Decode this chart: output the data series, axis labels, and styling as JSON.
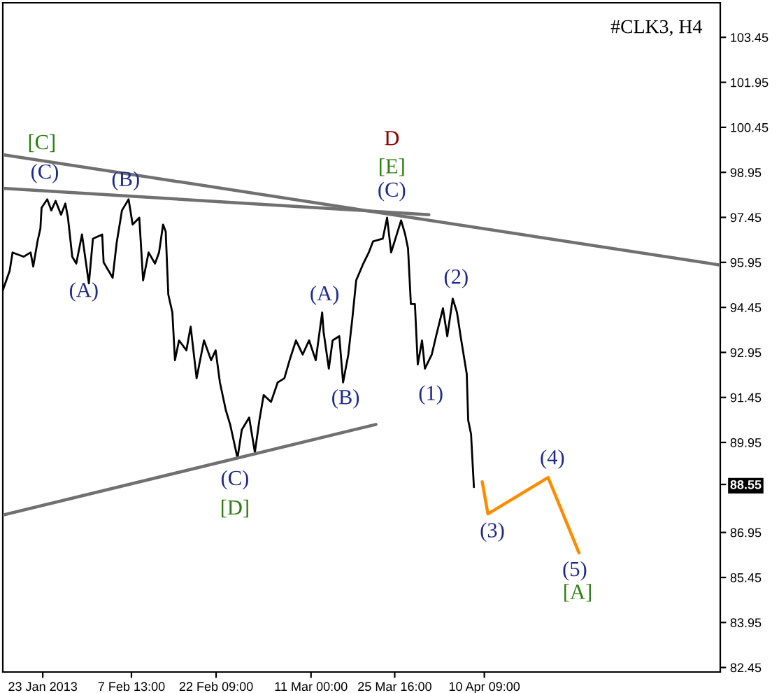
{
  "chart_data": {
    "type": "line",
    "title": "#CLK3, H4",
    "series": [
      {
        "color": "#000000",
        "x": [
          "2013-01-16T00:00",
          "2013-01-17T05:00",
          "2013-01-17T17:00",
          "2013-01-19T16:00",
          "2013-01-20T21:00",
          "2013-01-21T08:00",
          "2013-01-22T02:00",
          "2013-01-22T14:00",
          "2013-01-22T19:00",
          "2013-01-23T19:00",
          "2013-01-24T12:00",
          "2013-01-25T06:00",
          "2013-01-26T05:00",
          "2013-01-26T23:00",
          "2013-01-27T10:00",
          "2013-01-28T04:00",
          "2013-01-28T21:00",
          "2013-01-29T21:00",
          "2013-01-31T02:00",
          "2013-01-31T19:00",
          "2013-02-02T10:00",
          "2013-02-02T16:00",
          "2013-02-04T06:00",
          "2013-02-04T23:00",
          "2013-02-05T21:00",
          "2013-02-07T01:00",
          "2013-02-07T18:00",
          "2013-02-08T22:00",
          "2013-02-09T14:00",
          "2013-02-10T13:00",
          "2013-02-11T16:00",
          "2013-02-12T09:00",
          "2013-02-13T02:00",
          "2013-02-13T13:00",
          "2013-02-14T00:00",
          "2013-02-14T17:00",
          "2013-02-15T04:00",
          "2013-02-15T21:00",
          "2013-02-17T04:00",
          "2013-02-17T22:00",
          "2013-02-18T23:00",
          "2013-02-20T06:00",
          "2013-02-21T12:00",
          "2013-02-22T07:00",
          "2013-02-23T01:00",
          "2013-02-24T02:00",
          "2013-02-24T20:00",
          "2013-02-26T03:00",
          "2013-02-26T21:00",
          "2013-02-28T04:00",
          "2013-03-01T04:00",
          "2013-03-01T23:00",
          "2013-03-02T17:00",
          "2013-03-04T00:00",
          "2013-03-05T04:00",
          "2013-03-06T08:00",
          "2013-03-07T06:00",
          "2013-03-08T09:00",
          "2013-03-09T13:00",
          "2013-03-10T16:00",
          "2013-03-11T20:00",
          "2013-03-12T23:00",
          "2013-03-13T05:00",
          "2013-03-14T03:00",
          "2013-03-14T19:00",
          "2013-03-15T23:00",
          "2013-03-16T15:00",
          "2013-03-17T13:00",
          "2013-03-18T06:00",
          "2013-03-18T22:00",
          "2013-03-20T04:00",
          "2013-03-21T03:00",
          "2013-03-21T21:00",
          "2013-03-23T14:00",
          "2013-03-24T08:00",
          "2013-03-25T01:00",
          "2013-03-26T19:00",
          "2013-03-27T12:00",
          "2013-03-28T00:00",
          "2013-03-28T12:00",
          "2013-03-29T05:00",
          "2013-03-29T17:00",
          "2013-03-30T11:00",
          "2013-03-30T23:00",
          "2013-04-01T04:00",
          "2013-04-01T22:00",
          "2013-04-03T03:00",
          "2013-04-03T21:00",
          "2013-04-04T20:00",
          "2013-04-05T14:00",
          "2013-04-06T08:00",
          "2013-04-07T07:00",
          "2013-04-07T13:00",
          "2013-04-08T01:00",
          "2013-04-08T13:00"
        ],
        "values": [
          95.02,
          95.67,
          96.28,
          96.14,
          96.28,
          95.81,
          96.65,
          97.07,
          97.77,
          98.05,
          97.68,
          98.0,
          97.54,
          97.91,
          97.44,
          96.14,
          95.91,
          96.88,
          95.25,
          96.74,
          96.88,
          95.95,
          95.44,
          96.61,
          97.68,
          98.05,
          97.21,
          97.44,
          95.35,
          96.28,
          95.91,
          96.28,
          97.21,
          96.98,
          94.88,
          94.28,
          92.69,
          93.35,
          93.02,
          93.81,
          92.09,
          93.35,
          92.69,
          93.02,
          91.95,
          91.02,
          90.55,
          89.43,
          90.37,
          90.78,
          89.62,
          90.69,
          91.53,
          91.3,
          91.95,
          92.09,
          92.69,
          93.35,
          92.88,
          93.35,
          92.69,
          94.28,
          93.63,
          92.41,
          93.35,
          93.49,
          91.95,
          92.88,
          94.09,
          95.35,
          95.91,
          96.28,
          96.65,
          96.74,
          97.44,
          96.28,
          97.35,
          96.88,
          96.42,
          94.56,
          94.56,
          92.55,
          93.35,
          92.41,
          92.88,
          93.49,
          94.42,
          93.49,
          94.74,
          94.28,
          93.35,
          92.23,
          90.69,
          90.23,
          88.46
        ]
      },
      {
        "color": "#ff8c00",
        "x": [
          "2013-04-10T00:00",
          "2013-04-11T00:00",
          "2013-04-21T13:00",
          "2013-04-26T23:00"
        ],
        "values": [
          88.64,
          87.57,
          88.78,
          86.27
        ]
      },
      {
        "color": "#707070",
        "x": [
          "2013-01-16T00:00",
          "2013-05-21T17:00"
        ],
        "values": [
          99.54,
          95.86
        ]
      },
      {
        "color": "#707070",
        "x": [
          "2013-01-16T00:00",
          "2013-03-31T16:00"
        ],
        "values": [
          98.42,
          97.54
        ]
      },
      {
        "color": "#707070",
        "x": [
          "2013-01-16T00:00",
          "2013-03-22T09:00"
        ],
        "values": [
          87.53,
          90.55
        ]
      }
    ],
    "xlim": [
      "2013-01-16T00:00",
      "2013-05-21T17:00"
    ],
    "xticks": [
      {
        "value": "2013-01-23",
        "label": "23 Jan 2013"
      },
      {
        "value": "2013-02-07T13:00",
        "label": "7 Feb 13:00"
      },
      {
        "value": "2013-02-22T09:00",
        "label": "22 Feb 09:00"
      },
      {
        "value": "2013-03-11T00:00",
        "label": "11 Mar 00:00"
      },
      {
        "value": "2013-03-25T16:00",
        "label": "25 Mar 16:00"
      },
      {
        "value": "2013-04-10T09:00",
        "label": "10 Apr 09:00"
      }
    ],
    "ylim": [
      82.3,
      104.6
    ],
    "yticks": [
      82.45,
      83.95,
      85.45,
      86.95,
      {
        "value": 88.55,
        "label": "88.55"
      },
      89.95,
      91.45,
      92.95,
      94.45,
      95.95,
      97.45,
      98.95,
      100.45,
      101.95,
      103.45
    ],
    "annotations": [
      "[C]",
      "(C)",
      "(B)",
      "(A)",
      "(A)",
      "(B)",
      "(C)",
      "[D]",
      "D",
      "[E]",
      "(C)",
      "(2)",
      "(1)",
      "(3)",
      "(4)",
      "(5)",
      "[A]"
    ],
    "grid": false,
    "legend": false
  }
}
